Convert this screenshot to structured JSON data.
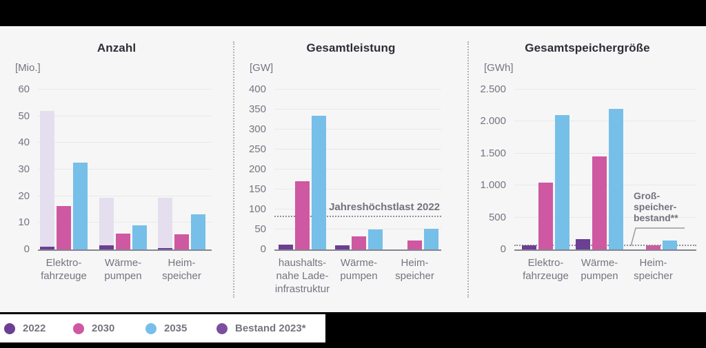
{
  "colors": {
    "frame_background": "#000000",
    "chart_background": "#F6F6F6",
    "legend_background": "#FFFFFF",
    "title_text": "#2E2E38",
    "axis_text": "#747480",
    "series_2022": "#6B3F92",
    "series_2030": "#CE58A2",
    "series_2035": "#76BFE9",
    "series_bestand_bar": "#E4DEEE",
    "series_bestand_dot": "#7C4E9E"
  },
  "legend": {
    "items": [
      {
        "label": "2022",
        "color": "#6B3F92"
      },
      {
        "label": "2030",
        "color": "#CE58A2"
      },
      {
        "label": "2035",
        "color": "#76BFE9"
      },
      {
        "label": "Bestand 2023*",
        "color": "#7C4E9E"
      }
    ]
  },
  "chart_data": [
    {
      "type": "bar",
      "title": "Anzahl",
      "unit": "[Mio.]",
      "ylim": [
        0,
        60
      ],
      "yticks": [
        0,
        10,
        20,
        30,
        40,
        50,
        60
      ],
      "ytick_labels": [
        "0",
        "10",
        "20",
        "30",
        "40",
        "50",
        "60"
      ],
      "categories": [
        [
          "Elektro-",
          "fahrzeuge"
        ],
        [
          "Wärme-",
          "pumpen"
        ],
        [
          "Heim-",
          "speicher"
        ]
      ],
      "series": [
        {
          "name": "Bestand 2023*",
          "slot": 0,
          "color": "#E4DEEE",
          "values": [
            52,
            19.5,
            19.5
          ]
        },
        {
          "name": "2022",
          "slot": 0,
          "color": "#6B3F92",
          "values": [
            1.0,
            1.5,
            0.6
          ]
        },
        {
          "name": "2030",
          "slot": 1,
          "color": "#CE58A2",
          "values": [
            16.3,
            6,
            5.8
          ]
        },
        {
          "name": "2035",
          "slot": 2,
          "color": "#76BFE9",
          "values": [
            32.5,
            9,
            13.2
          ]
        }
      ],
      "grid": true,
      "legend_position": "bottom"
    },
    {
      "type": "bar",
      "title": "Gesamtleistung",
      "unit": "[GW]",
      "ylim": [
        0,
        400
      ],
      "yticks": [
        0,
        50,
        100,
        150,
        200,
        250,
        300,
        350,
        400
      ],
      "ytick_labels": [
        "0",
        "50",
        "100",
        "150",
        "200",
        "250",
        "300",
        "350",
        "400"
      ],
      "categories": [
        [
          "haushalts-",
          "nahe Lade-",
          "infrastruktur"
        ],
        [
          "Wärme-",
          "pumpen"
        ],
        [
          "Heim-",
          "speicher"
        ]
      ],
      "series": [
        {
          "name": "2022",
          "slot": 0,
          "color": "#6B3F92",
          "values": [
            12,
            10,
            0
          ]
        },
        {
          "name": "2030",
          "slot": 1,
          "color": "#CE58A2",
          "values": [
            170,
            33,
            22
          ]
        },
        {
          "name": "2035",
          "slot": 2,
          "color": "#76BFE9",
          "values": [
            335,
            50,
            51
          ]
        }
      ],
      "annotation": {
        "label": "Jahreshöchstlast 2022",
        "value": 81,
        "style": "dashed"
      },
      "grid": true,
      "legend_position": "bottom"
    },
    {
      "type": "bar",
      "title": "Gesamtspeichergröße",
      "unit": "[GWh]",
      "ylim": [
        0,
        2500
      ],
      "yticks": [
        0,
        500,
        1000,
        1500,
        2000,
        2500
      ],
      "ytick_labels": [
        "0",
        "500",
        "1.000",
        "1.500",
        "2.000",
        "2.500"
      ],
      "categories": [
        [
          "Elektro-",
          "fahrzeuge"
        ],
        [
          "Wärme-",
          "pumpen"
        ],
        [
          "Heim-",
          "speicher"
        ]
      ],
      "series": [
        {
          "name": "2022",
          "slot": 0,
          "color": "#6B3F92",
          "values": [
            60,
            160,
            0
          ]
        },
        {
          "name": "2030",
          "slot": 1,
          "color": "#CE58A2",
          "values": [
            1050,
            1450,
            60
          ]
        },
        {
          "name": "2035",
          "slot": 2,
          "color": "#76BFE9",
          "values": [
            2100,
            2200,
            140
          ]
        }
      ],
      "annotation": {
        "label_lines": [
          "Groß-",
          "speicher-",
          "bestand**"
        ],
        "value": 50,
        "style": "dotted",
        "callout": true
      },
      "grid": true,
      "legend_position": "bottom"
    }
  ]
}
